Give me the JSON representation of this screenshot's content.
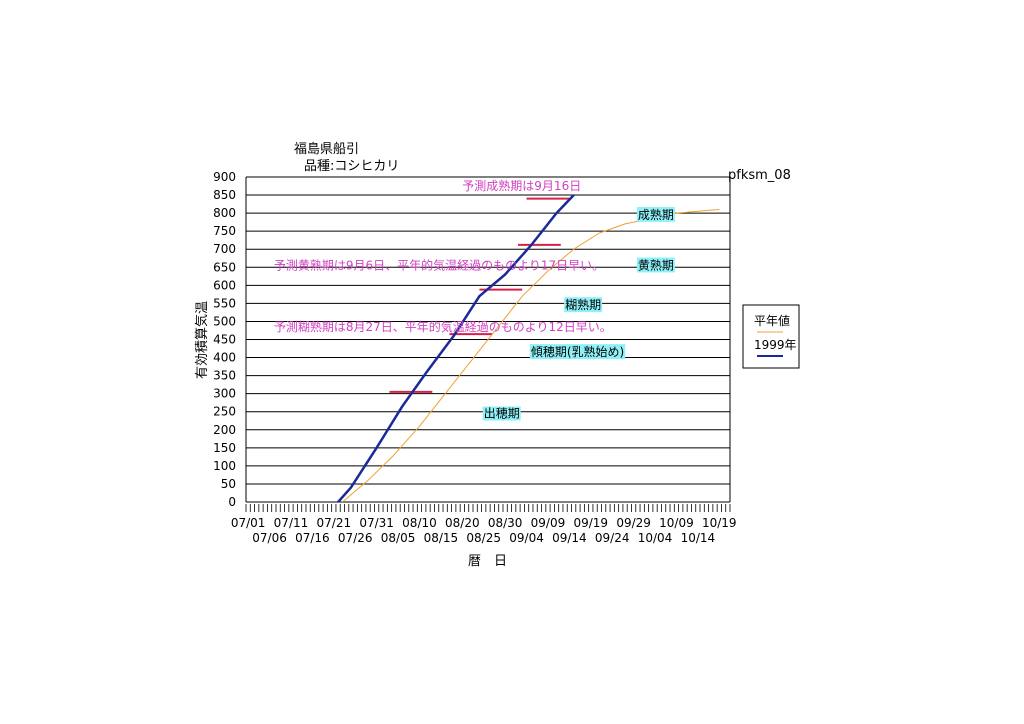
{
  "chart_data": {
    "type": "line",
    "title": "福島県船引",
    "subtitle": "品種:コシヒカリ",
    "id_label": "pfksm_08",
    "xlabel": "暦　日",
    "ylabel": "有効積算気温",
    "ylim": [
      0,
      900
    ],
    "yticks": [
      0,
      50,
      100,
      150,
      200,
      250,
      300,
      350,
      400,
      450,
      500,
      550,
      600,
      650,
      700,
      750,
      800,
      850,
      900
    ],
    "x_range": [
      "07/01",
      "10/21"
    ],
    "xticks_row1": [
      "07/01",
      "07/11",
      "07/21",
      "07/31",
      "08/10",
      "08/20",
      "08/30",
      "09/09",
      "09/19",
      "09/29",
      "10/09",
      "10/19"
    ],
    "xticks_row2": [
      "07/06",
      "07/16",
      "07/26",
      "08/05",
      "08/15",
      "08/25",
      "09/04",
      "09/14",
      "09/24",
      "10/04",
      "10/14"
    ],
    "grid": "horizontal",
    "legend_position": "right",
    "colors": {
      "normal": "#f0a030",
      "current": "#1a2a9a",
      "stage_bar": "#d8204a",
      "annotation": "#d040c0",
      "stage_label_bg": "#8ff0f8"
    },
    "series": [
      {
        "name": "平年値",
        "color": "#f0a030",
        "points": [
          [
            "07/23",
            0
          ],
          [
            "07/29",
            60
          ],
          [
            "08/04",
            130
          ],
          [
            "08/10",
            210
          ],
          [
            "08/16",
            300
          ],
          [
            "08/22",
            390
          ],
          [
            "08/28",
            480
          ],
          [
            "09/03",
            570
          ],
          [
            "09/09",
            640
          ],
          [
            "09/15",
            700
          ],
          [
            "09/21",
            745
          ],
          [
            "09/27",
            770
          ],
          [
            "10/03",
            785
          ],
          [
            "10/09",
            800
          ],
          [
            "10/15",
            806
          ],
          [
            "10/19",
            810
          ]
        ]
      },
      {
        "name": "1999年",
        "color": "#1a2a9a",
        "points": [
          [
            "07/22",
            0
          ],
          [
            "07/25",
            40
          ],
          [
            "07/31",
            150
          ],
          [
            "08/06",
            265
          ],
          [
            "08/12",
            365
          ],
          [
            "08/18",
            460
          ],
          [
            "08/24",
            570
          ],
          [
            "08/30",
            630
          ],
          [
            "09/05",
            710
          ],
          [
            "09/11",
            800
          ],
          [
            "09/15",
            850
          ]
        ]
      }
    ],
    "stage_bars": [
      {
        "x1": "08/03",
        "x2": "08/13",
        "y": 305
      },
      {
        "x1": "08/17",
        "x2": "08/27",
        "y": 465
      },
      {
        "x1": "08/24",
        "x2": "09/03",
        "y": 588
      },
      {
        "x1": "09/02",
        "x2": "09/12",
        "y": 712
      },
      {
        "x1": "09/04",
        "x2": "09/14",
        "y": 840
      }
    ],
    "stage_labels": [
      {
        "text": "出穂期",
        "x": "08/25",
        "y": 245
      },
      {
        "text": "傾穂期(乳熟始め)",
        "x": "09/05",
        "y": 415
      },
      {
        "text": "糊熟期",
        "x": "09/13",
        "y": 545
      },
      {
        "text": "黄熟期",
        "x": "09/30",
        "y": 655
      },
      {
        "text": "成熟期",
        "x": "09/30",
        "y": 795
      }
    ],
    "annotations": [
      {
        "text": "予測成熟期は9月16日",
        "x": "08/20",
        "y": 875
      },
      {
        "text": "予測黄熟期は9月6日、平年的気温経過のものより17日早い。",
        "x": "07/07",
        "y": 655
      },
      {
        "text": "予測糊熟期は8月27日、平年的気温経過のものより12日早い。",
        "x": "07/07",
        "y": 485
      }
    ]
  }
}
